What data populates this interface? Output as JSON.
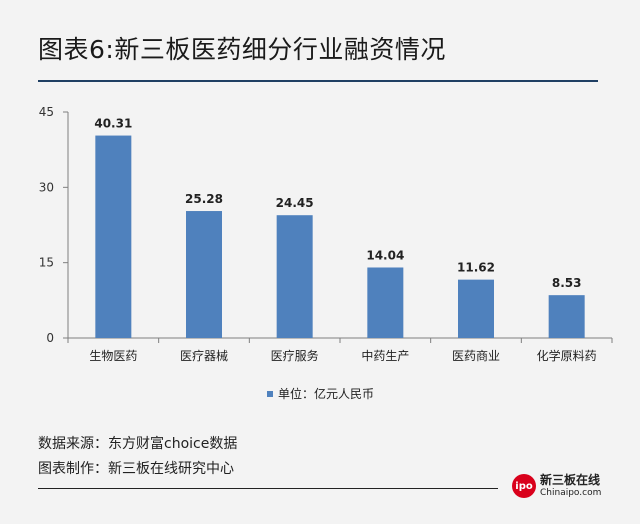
{
  "title": "图表6:新三板医药细分行业融资情况",
  "chart_data": {
    "type": "bar",
    "categories": [
      "生物医药",
      "医疗器械",
      "医疗服务",
      "中药生产",
      "医药商业",
      "化学原料药"
    ],
    "series": [
      {
        "name": "单位：亿元人民币",
        "values": [
          40.31,
          25.28,
          24.45,
          14.04,
          11.62,
          8.53
        ],
        "color": "#4f81bd"
      }
    ],
    "value_labels": [
      "40.31",
      "25.28",
      "24.45",
      "14.04",
      "11.62",
      "8.53"
    ],
    "yticks": [
      "0",
      "15",
      "30",
      "45"
    ],
    "ylim": [
      0,
      45
    ],
    "grid": false,
    "legend_position": "bottom"
  },
  "footer": {
    "source": "数据来源：东方财富choice数据",
    "maker": "图表制作：新三板在线研究中心"
  },
  "logo": {
    "badge": "ipo",
    "name": "新三板在线",
    "url": "Chinaipo.com"
  }
}
